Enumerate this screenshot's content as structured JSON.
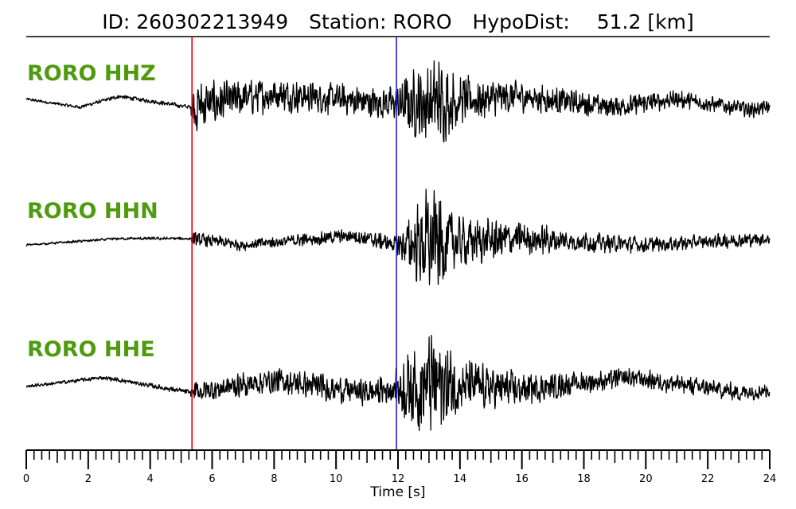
{
  "title": {
    "id_label": "ID:",
    "event_id": "260302213949",
    "station_label": "Station:",
    "station": "RORO",
    "hypodist_label": "HypoDist:",
    "hypodist": "51.2",
    "hypodist_unit": "[km]"
  },
  "colors": {
    "label": "#4f9a0e",
    "trace": "#000000",
    "p_pick": "#e8000b",
    "s_pick": "#1f1fd0"
  },
  "chart_data": {
    "type": "line",
    "xlabel": "Time [s]",
    "ylabel": "",
    "xlim": [
      0,
      24
    ],
    "x_ticks": [
      0,
      2,
      4,
      6,
      8,
      10,
      12,
      14,
      16,
      18,
      20,
      22,
      24
    ],
    "minor_tick_step": 0.25,
    "grid": false,
    "picks": [
      {
        "phase": "P",
        "time": 5.35,
        "color": "#e8000b"
      },
      {
        "phase": "S",
        "time": 11.95,
        "color": "#1f1fd0"
      }
    ],
    "series": [
      {
        "name": "RORO HHZ",
        "noise_level": 0.05,
        "envelope": [
          [
            0,
            0.03
          ],
          [
            5.3,
            0.05
          ],
          [
            5.4,
            0.6
          ],
          [
            6.5,
            0.4
          ],
          [
            8,
            0.35
          ],
          [
            10,
            0.32
          ],
          [
            11.9,
            0.35
          ],
          [
            12.2,
            0.55
          ],
          [
            13.2,
            1.0
          ],
          [
            14,
            0.5
          ],
          [
            16,
            0.32
          ],
          [
            18,
            0.25
          ],
          [
            20,
            0.2
          ],
          [
            24,
            0.15
          ]
        ],
        "long_period": [
          [
            0,
            0.05
          ],
          [
            1.7,
            -0.1
          ],
          [
            3,
            0.1
          ],
          [
            5.3,
            -0.1
          ],
          [
            8,
            0.15
          ],
          [
            12,
            -0.05
          ],
          [
            16,
            0.1
          ],
          [
            19,
            -0.1
          ],
          [
            21,
            0.05
          ],
          [
            23.5,
            -0.15
          ],
          [
            24,
            -0.1
          ]
        ]
      },
      {
        "name": "RORO HHN",
        "noise_level": 0.04,
        "envelope": [
          [
            0,
            0.02
          ],
          [
            5.3,
            0.03
          ],
          [
            5.4,
            0.12
          ],
          [
            8,
            0.1
          ],
          [
            10,
            0.12
          ],
          [
            11.9,
            0.15
          ],
          [
            12.5,
            0.6
          ],
          [
            13,
            1.0
          ],
          [
            14,
            0.45
          ],
          [
            16,
            0.3
          ],
          [
            18,
            0.18
          ],
          [
            20,
            0.14
          ],
          [
            24,
            0.12
          ]
        ],
        "long_period": [
          [
            0,
            -0.05
          ],
          [
            3,
            0.05
          ],
          [
            5.3,
            0.05
          ],
          [
            7,
            -0.05
          ],
          [
            10.5,
            0.1
          ],
          [
            12,
            -0.05
          ],
          [
            16,
            0.05
          ],
          [
            20,
            -0.05
          ],
          [
            24,
            0.05
          ]
        ]
      },
      {
        "name": "RORO HHE",
        "noise_level": 0.05,
        "envelope": [
          [
            0,
            0.03
          ],
          [
            5.3,
            0.05
          ],
          [
            5.4,
            0.2
          ],
          [
            8,
            0.25
          ],
          [
            11.5,
            0.25
          ],
          [
            11.9,
            0.3
          ],
          [
            12.4,
            0.8
          ],
          [
            13.2,
            1.0
          ],
          [
            14,
            0.5
          ],
          [
            16,
            0.3
          ],
          [
            18,
            0.2
          ],
          [
            20,
            0.18
          ],
          [
            24,
            0.16
          ]
        ],
        "long_period": [
          [
            0,
            0.0
          ],
          [
            2.5,
            0.15
          ],
          [
            5.3,
            -0.1
          ],
          [
            8,
            0.1
          ],
          [
            11,
            -0.1
          ],
          [
            13,
            0.05
          ],
          [
            16,
            -0.05
          ],
          [
            19.5,
            0.15
          ],
          [
            23,
            -0.1
          ],
          [
            24,
            -0.05
          ]
        ]
      }
    ]
  }
}
